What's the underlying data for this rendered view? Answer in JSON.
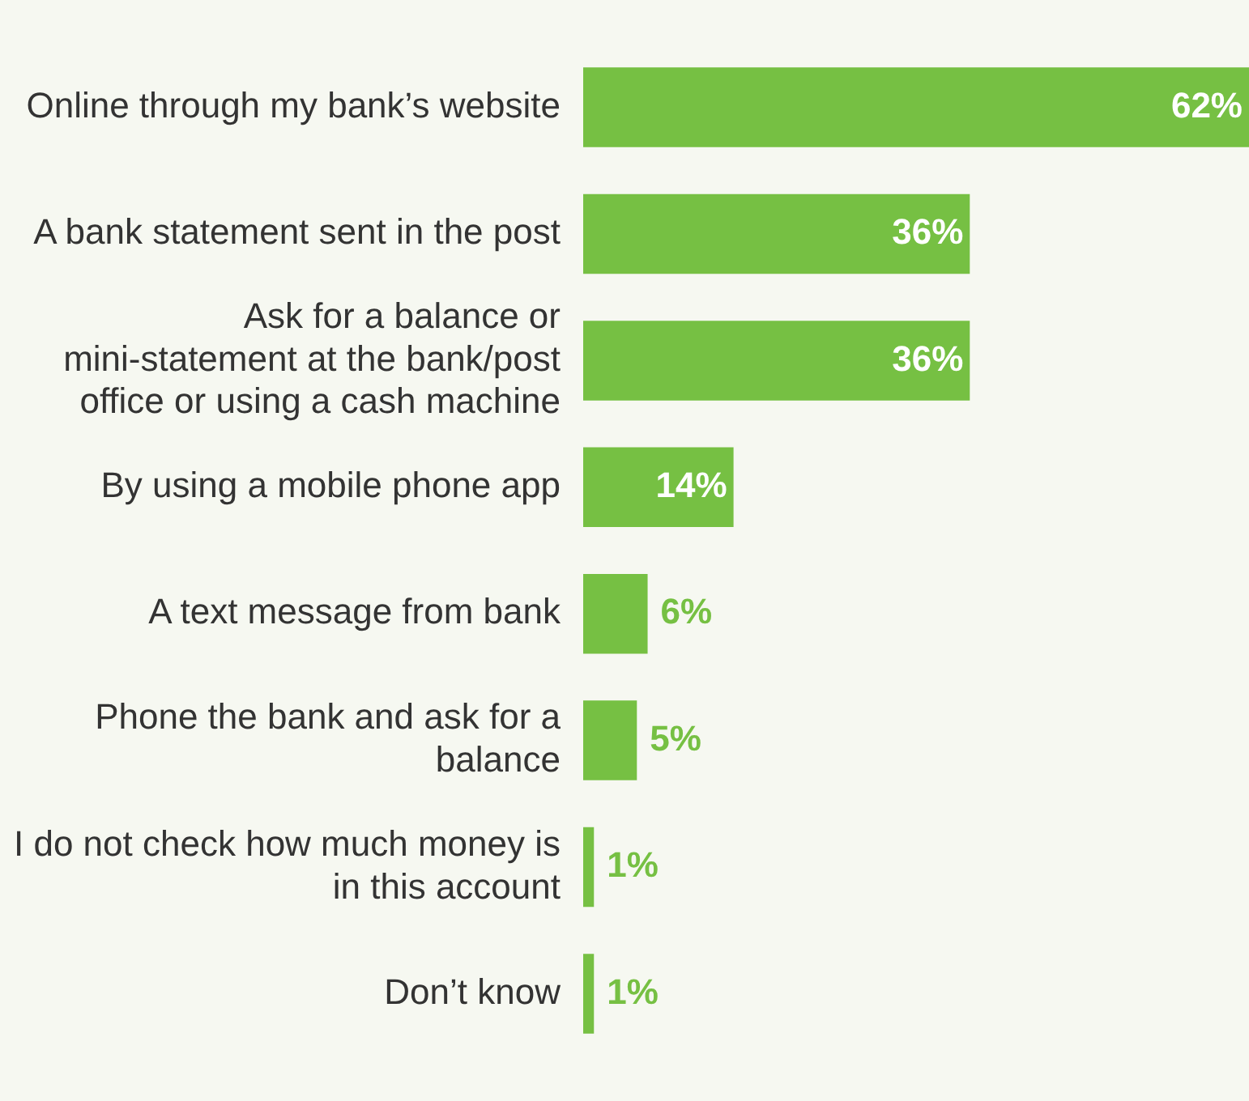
{
  "chart_data": {
    "type": "bar",
    "orientation": "horizontal",
    "categories": [
      "Online through my bank’s website",
      "A bank statement sent in the post",
      "Ask for a balance or mini-statement at the bank/post office or using a cash machine",
      "By using a mobile phone app",
      "A text message from bank",
      "Phone the bank and ask for a balance",
      "I do not check how much money is in this account",
      "Don’t know"
    ],
    "values": [
      62,
      36,
      36,
      14,
      6,
      5,
      1,
      1
    ],
    "value_labels": [
      "62%",
      "36%",
      "36%",
      "14%",
      "6%",
      "5%",
      "1%",
      "1%"
    ],
    "color": "#76c043",
    "grid": false,
    "legend": false
  }
}
